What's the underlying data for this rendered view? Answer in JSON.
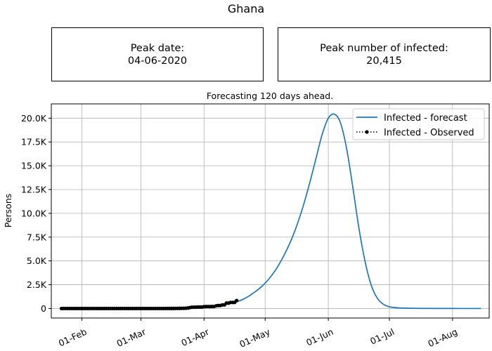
{
  "figure_title": "Ghana",
  "peak_date": {
    "label": "Peak date:",
    "value": "04-06-2020"
  },
  "peak_number": {
    "label": "Peak number of infected:",
    "value": "20,415"
  },
  "chart_data": {
    "type": "line",
    "title": "Forecasting 120 days ahead.",
    "xlabel": "",
    "ylabel": "Persons",
    "xlim": [
      "2020-01-17",
      "2020-08-19"
    ],
    "ylim": [
      -1000,
      21500
    ],
    "grid": true,
    "legend_position": "top-right",
    "x_ticks": [
      {
        "date": "2020-02-01",
        "label": "01-Feb"
      },
      {
        "date": "2020-03-01",
        "label": "01-Mar"
      },
      {
        "date": "2020-04-01",
        "label": "01-Apr"
      },
      {
        "date": "2020-05-01",
        "label": "01-May"
      },
      {
        "date": "2020-06-01",
        "label": "01-Jun"
      },
      {
        "date": "2020-07-01",
        "label": "01-Jul"
      },
      {
        "date": "2020-08-01",
        "label": "01-Aug"
      }
    ],
    "y_ticks": [
      {
        "value": 0,
        "label": "0"
      },
      {
        "value": 2500,
        "label": "2.5K"
      },
      {
        "value": 5000,
        "label": "5.0K"
      },
      {
        "value": 7500,
        "label": "7.5K"
      },
      {
        "value": 10000,
        "label": "10.0K"
      },
      {
        "value": 12500,
        "label": "12.5K"
      },
      {
        "value": 15000,
        "label": "15.0K"
      },
      {
        "value": 17500,
        "label": "17.5K"
      },
      {
        "value": 20000,
        "label": "20.0K"
      }
    ],
    "series": [
      {
        "name": "Infected - forecast",
        "color": "#1f77b4",
        "style": "solid",
        "points": [
          {
            "x": "2020-04-17",
            "y": 700
          },
          {
            "x": "2020-04-20",
            "y": 950
          },
          {
            "x": "2020-04-23",
            "y": 1300
          },
          {
            "x": "2020-04-26",
            "y": 1750
          },
          {
            "x": "2020-04-29",
            "y": 2250
          },
          {
            "x": "2020-05-02",
            "y": 2900
          },
          {
            "x": "2020-05-05",
            "y": 3700
          },
          {
            "x": "2020-05-08",
            "y": 4700
          },
          {
            "x": "2020-05-11",
            "y": 5900
          },
          {
            "x": "2020-05-14",
            "y": 7300
          },
          {
            "x": "2020-05-17",
            "y": 9000
          },
          {
            "x": "2020-05-20",
            "y": 11000
          },
          {
            "x": "2020-05-23",
            "y": 13300
          },
          {
            "x": "2020-05-26",
            "y": 15800
          },
          {
            "x": "2020-05-29",
            "y": 18300
          },
          {
            "x": "2020-06-01",
            "y": 20000
          },
          {
            "x": "2020-06-04",
            "y": 20415
          },
          {
            "x": "2020-06-07",
            "y": 19500
          },
          {
            "x": "2020-06-10",
            "y": 16800
          },
          {
            "x": "2020-06-13",
            "y": 12800
          },
          {
            "x": "2020-06-16",
            "y": 8500
          },
          {
            "x": "2020-06-19",
            "y": 5000
          },
          {
            "x": "2020-06-22",
            "y": 2500
          },
          {
            "x": "2020-06-25",
            "y": 1100
          },
          {
            "x": "2020-06-28",
            "y": 450
          },
          {
            "x": "2020-07-01",
            "y": 180
          },
          {
            "x": "2020-07-06",
            "y": 60
          },
          {
            "x": "2020-07-15",
            "y": 15
          },
          {
            "x": "2020-08-01",
            "y": 3
          },
          {
            "x": "2020-08-15",
            "y": 0
          }
        ]
      },
      {
        "name": "Infected - Observed",
        "color": "#000000",
        "style": "dotted",
        "points": [
          {
            "x": "2020-01-22",
            "y": 0
          },
          {
            "x": "2020-01-23",
            "y": 0
          },
          {
            "x": "2020-01-24",
            "y": 0
          },
          {
            "x": "2020-01-25",
            "y": 0
          },
          {
            "x": "2020-01-26",
            "y": 0
          },
          {
            "x": "2020-01-27",
            "y": 0
          },
          {
            "x": "2020-01-28",
            "y": 0
          },
          {
            "x": "2020-01-29",
            "y": 0
          },
          {
            "x": "2020-01-30",
            "y": 0
          },
          {
            "x": "2020-01-31",
            "y": 0
          },
          {
            "x": "2020-02-01",
            "y": 0
          },
          {
            "x": "2020-02-02",
            "y": 0
          },
          {
            "x": "2020-02-03",
            "y": 0
          },
          {
            "x": "2020-02-04",
            "y": 0
          },
          {
            "x": "2020-02-05",
            "y": 0
          },
          {
            "x": "2020-02-06",
            "y": 0
          },
          {
            "x": "2020-02-07",
            "y": 0
          },
          {
            "x": "2020-02-08",
            "y": 0
          },
          {
            "x": "2020-02-09",
            "y": 0
          },
          {
            "x": "2020-02-10",
            "y": 0
          },
          {
            "x": "2020-02-11",
            "y": 0
          },
          {
            "x": "2020-02-12",
            "y": 0
          },
          {
            "x": "2020-02-13",
            "y": 0
          },
          {
            "x": "2020-02-14",
            "y": 0
          },
          {
            "x": "2020-02-15",
            "y": 0
          },
          {
            "x": "2020-02-16",
            "y": 0
          },
          {
            "x": "2020-02-17",
            "y": 0
          },
          {
            "x": "2020-02-18",
            "y": 0
          },
          {
            "x": "2020-02-19",
            "y": 0
          },
          {
            "x": "2020-02-20",
            "y": 0
          },
          {
            "x": "2020-02-21",
            "y": 0
          },
          {
            "x": "2020-02-22",
            "y": 0
          },
          {
            "x": "2020-02-23",
            "y": 0
          },
          {
            "x": "2020-02-24",
            "y": 0
          },
          {
            "x": "2020-02-25",
            "y": 0
          },
          {
            "x": "2020-02-26",
            "y": 0
          },
          {
            "x": "2020-02-27",
            "y": 0
          },
          {
            "x": "2020-02-28",
            "y": 0
          },
          {
            "x": "2020-02-29",
            "y": 0
          },
          {
            "x": "2020-03-01",
            "y": 0
          },
          {
            "x": "2020-03-02",
            "y": 0
          },
          {
            "x": "2020-03-03",
            "y": 0
          },
          {
            "x": "2020-03-04",
            "y": 0
          },
          {
            "x": "2020-03-05",
            "y": 0
          },
          {
            "x": "2020-03-06",
            "y": 0
          },
          {
            "x": "2020-03-07",
            "y": 0
          },
          {
            "x": "2020-03-08",
            "y": 0
          },
          {
            "x": "2020-03-09",
            "y": 0
          },
          {
            "x": "2020-03-10",
            "y": 0
          },
          {
            "x": "2020-03-11",
            "y": 0
          },
          {
            "x": "2020-03-12",
            "y": 2
          },
          {
            "x": "2020-03-13",
            "y": 2
          },
          {
            "x": "2020-03-14",
            "y": 3
          },
          {
            "x": "2020-03-15",
            "y": 6
          },
          {
            "x": "2020-03-16",
            "y": 6
          },
          {
            "x": "2020-03-17",
            "y": 7
          },
          {
            "x": "2020-03-18",
            "y": 9
          },
          {
            "x": "2020-03-19",
            "y": 11
          },
          {
            "x": "2020-03-20",
            "y": 16
          },
          {
            "x": "2020-03-21",
            "y": 19
          },
          {
            "x": "2020-03-22",
            "y": 23
          },
          {
            "x": "2020-03-23",
            "y": 27
          },
          {
            "x": "2020-03-24",
            "y": 53
          },
          {
            "x": "2020-03-25",
            "y": 93
          },
          {
            "x": "2020-03-26",
            "y": 132
          },
          {
            "x": "2020-03-27",
            "y": 137
          },
          {
            "x": "2020-03-28",
            "y": 141
          },
          {
            "x": "2020-03-29",
            "y": 152
          },
          {
            "x": "2020-03-30",
            "y": 152
          },
          {
            "x": "2020-03-31",
            "y": 152
          },
          {
            "x": "2020-04-01",
            "y": 195
          },
          {
            "x": "2020-04-02",
            "y": 204
          },
          {
            "x": "2020-04-03",
            "y": 205
          },
          {
            "x": "2020-04-04",
            "y": 205
          },
          {
            "x": "2020-04-05",
            "y": 214
          },
          {
            "x": "2020-04-06",
            "y": 214
          },
          {
            "x": "2020-04-07",
            "y": 287
          },
          {
            "x": "2020-04-08",
            "y": 313
          },
          {
            "x": "2020-04-09",
            "y": 313
          },
          {
            "x": "2020-04-10",
            "y": 378
          },
          {
            "x": "2020-04-11",
            "y": 378
          },
          {
            "x": "2020-04-12",
            "y": 566
          },
          {
            "x": "2020-04-13",
            "y": 566
          },
          {
            "x": "2020-04-14",
            "y": 636
          },
          {
            "x": "2020-04-15",
            "y": 636
          },
          {
            "x": "2020-04-16",
            "y": 641
          },
          {
            "x": "2020-04-17",
            "y": 834
          }
        ]
      }
    ]
  }
}
